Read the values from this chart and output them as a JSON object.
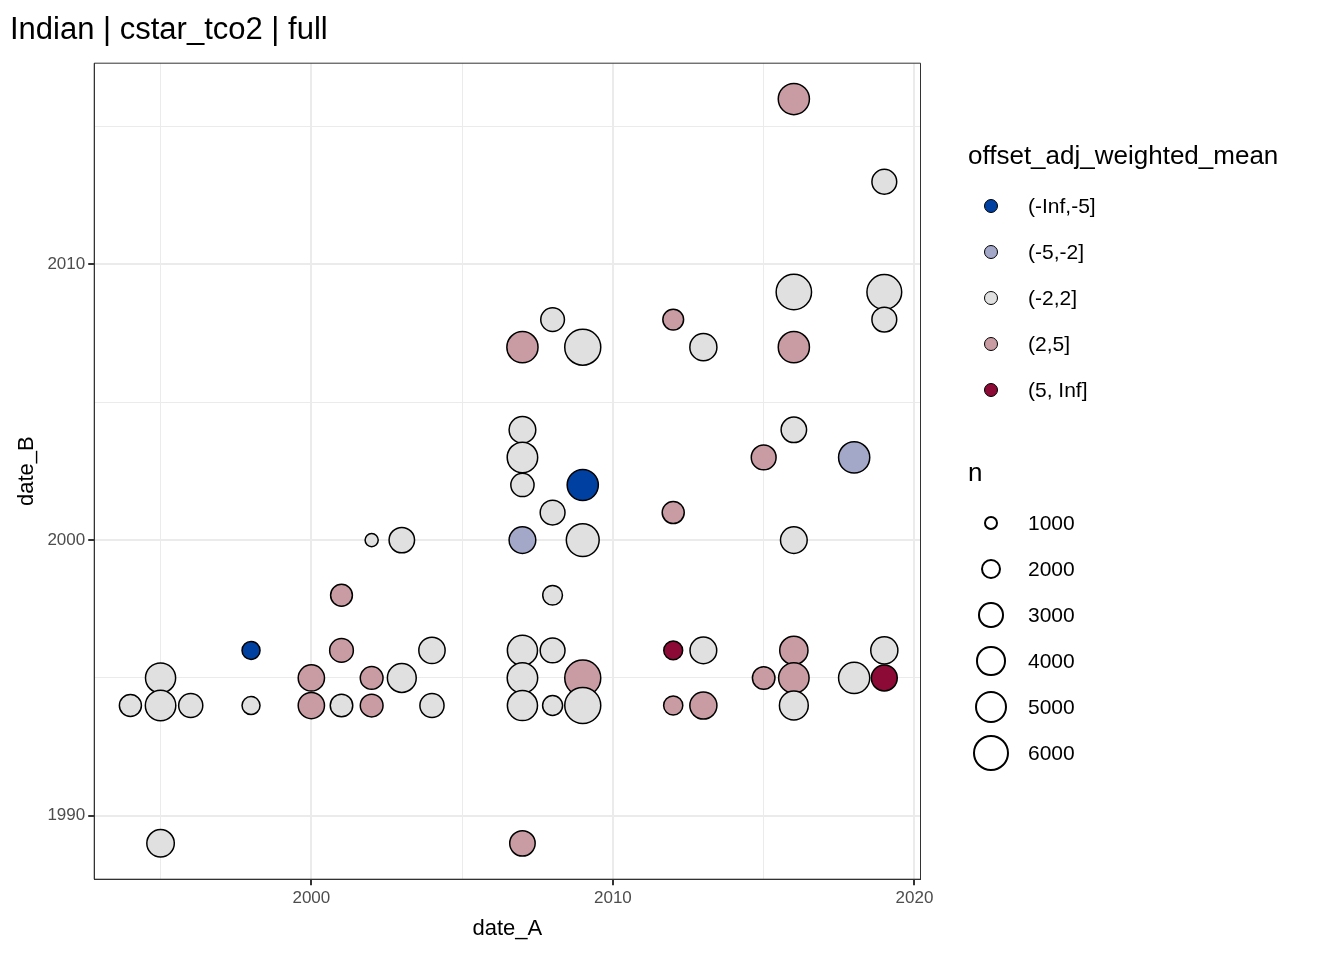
{
  "chart_data": {
    "type": "bubble",
    "title": "Indian | cstar_tco2 | full",
    "xlabel": "date_A",
    "ylabel": "date_B",
    "legend_title": [
      "offset_adj_weighted_mean",
      "n"
    ],
    "legend": "right",
    "grid": true,
    "marker": "circle",
    "xlim": [
      1992.8,
      2020.2
    ],
    "ylim": [
      1987.7,
      2017.3
    ],
    "xticks": [
      {
        "value": 1995,
        "label": null
      },
      2000,
      {
        "value": 2005,
        "label": null
      },
      2010,
      {
        "value": 2015,
        "label": null
      },
      2020
    ],
    "yticks": [
      {
        "value": 1995,
        "label": null
      },
      1990,
      2000,
      {
        "value": 2005,
        "label": null
      },
      2010,
      {
        "value": 2015,
        "label": null
      }
    ],
    "size_legend": [
      1000,
      2000,
      3000,
      4000,
      5000,
      6000
    ],
    "series": [
      {
        "name": "(-Inf,-5]",
        "color": "#0040a0",
        "x": [
          1998,
          2009
        ],
        "values": [
          1996,
          2002
        ],
        "sizes": [
          1500,
          4500
        ]
      },
      {
        "name": "(-5,-2]",
        "color": "#a3a8c9",
        "x": [
          2007,
          2018
        ],
        "values": [
          2000,
          2003
        ],
        "sizes": [
          3300,
          4500
        ]
      },
      {
        "name": "(-2,2]",
        "color": "#e0e0e0",
        "x": [
          2019,
          2016,
          2019,
          2019,
          2008,
          2009,
          2013,
          2007,
          2016,
          2007,
          2007,
          2008,
          2002,
          2003,
          2009,
          2016,
          2008,
          2004,
          2007,
          2008,
          2013,
          2019,
          1995,
          2003,
          2007,
          2018,
          1994,
          1995,
          1996,
          1998,
          2001,
          2004,
          2007,
          2008,
          2009,
          2016,
          1995
        ],
        "values": [
          2013,
          2009,
          2009,
          2008,
          2008,
          2007,
          2007,
          2004,
          2004,
          2003,
          2002,
          2001,
          2000,
          2000,
          2000,
          2000,
          1998,
          1996,
          1996,
          1996,
          1996,
          1996,
          1995,
          1995,
          1995,
          1995,
          1994,
          1994,
          1994,
          1994,
          1994,
          1994,
          1994,
          1994,
          1994,
          1994,
          1989
        ],
        "sizes": [
          2850,
          5800,
          5600,
          2850,
          2600,
          6000,
          3400,
          3300,
          3000,
          4300,
          2500,
          2850,
          800,
          3000,
          5000,
          3300,
          1800,
          3200,
          4200,
          2850,
          3300,
          3400,
          4200,
          3850,
          4300,
          4500,
          2250,
          4300,
          2700,
          1500,
          2350,
          2700,
          4200,
          1850,
          6000,
          3850,
          3500
        ]
      },
      {
        "name": "(2,5]",
        "color": "#c99ca3",
        "x": [
          2016,
          2012,
          2007,
          2016,
          2015,
          2012,
          2001,
          2001,
          2016,
          2000,
          2002,
          2009,
          2015,
          2016,
          2000,
          2002,
          2012,
          2013,
          2007
        ],
        "values": [
          2016,
          2008,
          2007,
          2007,
          2003,
          2001,
          1998,
          1996,
          1996,
          1995,
          1995,
          1995,
          1995,
          1995,
          1994,
          1994,
          1994,
          1994,
          1989
        ],
        "sizes": [
          4500,
          2000,
          4500,
          4500,
          2850,
          2250,
          2200,
          2600,
          3700,
          3200,
          2400,
          6000,
          2350,
          4300,
          3200,
          2400,
          1700,
          3400,
          3000
        ]
      },
      {
        "name": "(5, Inf]",
        "color": "#8b0a36",
        "x": [
          2012,
          2019
        ],
        "values": [
          1996,
          1995
        ],
        "sizes": [
          1650,
          3100
        ]
      }
    ]
  }
}
